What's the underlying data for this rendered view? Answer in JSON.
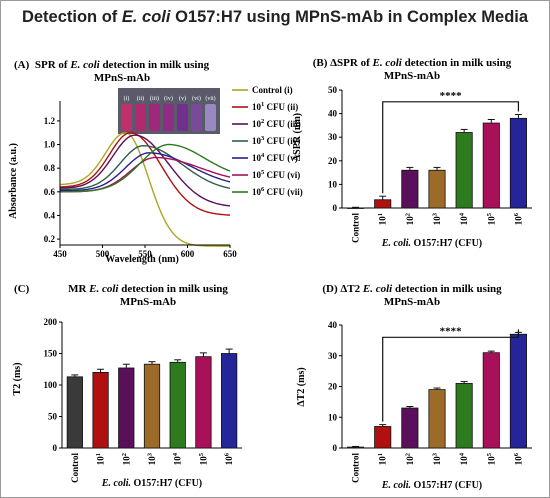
{
  "page": {
    "title": "Detection of E. coli O157:H7 using MPnS-mAb in Complex Media",
    "title_pre": "Detection of ",
    "title_italic": "E. coli",
    "title_post": " O157:H7 using MPnS-mAb in Complex Media"
  },
  "colors": {
    "control": "#3a3a3a",
    "cfu1": "#b01010",
    "cfu2": "#5a0f5a",
    "cfu3": "#9c6b2a",
    "cfu4": "#2e7a1e",
    "cfu5": "#a8105a",
    "cfu6": "#25259a",
    "spectrum": [
      "#b0a520",
      "#b01010",
      "#5a0f5a",
      "#2e5e4a",
      "#2a1e8a",
      "#a8105a",
      "#2e7a1e"
    ]
  },
  "chart_data": [
    {
      "type": "line",
      "panel": "(A)",
      "title": "SPR of E. coli detection in milk using MPnS-mAb",
      "title_line1_pre": "SPR of ",
      "title_line1_italic": "E. coli",
      "title_line1_post": " detection in milk using",
      "title_line2": "MPnS-mAb",
      "xlabel": "Wavelength (nm)",
      "ylabel": "Absorbance (a.u.)",
      "xlim": [
        450,
        650
      ],
      "ylim": [
        0.15,
        1.25
      ],
      "xticks": [
        "450",
        "500",
        "550",
        "600",
        "650"
      ],
      "yticks": [
        "0.2",
        "0.4",
        "0.6",
        "0.8",
        "1.0",
        "1.2"
      ],
      "legend_position": "right",
      "series": [
        {
          "name": "Control (i)",
          "legend": {
            "base": "",
            "sup": "",
            "text": "Control (i)"
          },
          "peak_x": 527,
          "peak_y": 1.1,
          "start_y": 0.66,
          "end_y": 0.14,
          "width_left": 42,
          "width_right": 45
        },
        {
          "name": "10^1 CFU (ii)",
          "legend": {
            "base": "10",
            "sup": "1",
            "text": " CFU (ii)"
          },
          "peak_x": 533,
          "peak_y": 1.1,
          "start_y": 0.64,
          "end_y": 0.4,
          "width_left": 44,
          "width_right": 60
        },
        {
          "name": "10^2 CFU (iii)",
          "legend": {
            "base": "10",
            "sup": "2",
            "text": " CFU (iii)"
          },
          "peak_x": 538,
          "peak_y": 1.08,
          "start_y": 0.63,
          "end_y": 0.47,
          "width_left": 46,
          "width_right": 66
        },
        {
          "name": "10^3 CFU (iv)",
          "legend": {
            "base": "10",
            "sup": "3",
            "text": " CFU (iv)"
          },
          "peak_x": 548,
          "peak_y": 0.99,
          "start_y": 0.62,
          "end_y": 0.6,
          "width_left": 48,
          "width_right": 75
        },
        {
          "name": "10^4 CFU (v)",
          "legend": {
            "base": "10",
            "sup": "4",
            "text": " CFU (v)"
          },
          "peak_x": 555,
          "peak_y": 0.93,
          "start_y": 0.61,
          "end_y": 0.64,
          "width_left": 50,
          "width_right": 82
        },
        {
          "name": "10^5 CFU (vi)",
          "legend": {
            "base": "10",
            "sup": "5",
            "text": " CFU (vi)"
          },
          "peak_x": 562,
          "peak_y": 0.89,
          "start_y": 0.6,
          "end_y": 0.67,
          "width_left": 52,
          "width_right": 88
        },
        {
          "name": "10^6 CFU (vii)",
          "legend": {
            "base": "10",
            "sup": "6",
            "text": " CFU (vii)"
          },
          "peak_x": 578,
          "peak_y": 1.0,
          "start_y": 0.6,
          "end_y": 0.71,
          "width_left": 60,
          "width_right": 70
        }
      ],
      "inset_labels": [
        "(i)",
        "(ii)",
        "(iii)",
        "(iv)",
        "(v)",
        "(vi)",
        "(vii)"
      ]
    },
    {
      "type": "bar",
      "panel": "(B)",
      "title": "ΔSPR of E. coli detection in milk using MPnS-mAb",
      "title_line1_pre": "(B) ΔSPR of ",
      "title_line1_italic": "E. coli",
      "title_line1_post": " detection in milk using",
      "title_line2": "MPnS-mAb",
      "ylabel": "ΔSPR (nm)",
      "xlabel_italic": "E. coli.",
      "xlabel_rest": " O157:H7 (CFU)",
      "ylim": [
        0,
        50
      ],
      "yticks": [
        "0",
        "10",
        "20",
        "30",
        "40",
        "50"
      ],
      "categories": [
        {
          "base": "Control",
          "sup": ""
        },
        {
          "base": "10",
          "sup": "1"
        },
        {
          "base": "10",
          "sup": "2"
        },
        {
          "base": "10",
          "sup": "3"
        },
        {
          "base": "10",
          "sup": "4"
        },
        {
          "base": "10",
          "sup": "5"
        },
        {
          "base": "10",
          "sup": "6"
        }
      ],
      "values": [
        0,
        3.5,
        16,
        16,
        32,
        36,
        38
      ],
      "errors": [
        0.3,
        1.5,
        1.2,
        1.2,
        1.3,
        1.5,
        1.6
      ],
      "significance": {
        "from": 1,
        "to": 6,
        "label": "****",
        "y": 45
      }
    },
    {
      "type": "bar",
      "panel": "(C)",
      "title": "MR E. coli detection in milk using MPnS-mAb",
      "title_line1_pre": "MR ",
      "title_line1_italic": "E. coli",
      "title_line1_post": " detection in milk using",
      "title_line2": "MPnS-mAb",
      "ylabel": "T2 (ms)",
      "xlabel_italic": "E. coli.",
      "xlabel_rest": " O157:H7 (CFU)",
      "ylim": [
        0,
        200
      ],
      "yticks": [
        "0",
        "50",
        "100",
        "150",
        "200"
      ],
      "categories": [
        {
          "base": "Control",
          "sup": ""
        },
        {
          "base": "10",
          "sup": "1"
        },
        {
          "base": "10",
          "sup": "2"
        },
        {
          "base": "10",
          "sup": "3"
        },
        {
          "base": "10",
          "sup": "4"
        },
        {
          "base": "10",
          "sup": "5"
        },
        {
          "base": "10",
          "sup": "6"
        }
      ],
      "values": [
        113,
        120,
        127,
        133,
        136,
        145,
        150
      ],
      "errors": [
        3,
        5,
        6,
        4,
        4,
        6,
        7
      ]
    },
    {
      "type": "bar",
      "panel": "(D)",
      "title": "ΔT2 E. coli detection in milk using MPnS-mAb",
      "title_line1_pre": "(D) ΔT2 ",
      "title_line1_italic": "E. coli",
      "title_line1_post": " detection in milk using",
      "title_line2": "MPnS-mAb",
      "ylabel": "ΔT2 (ms)",
      "xlabel_italic": "E. coli.",
      "xlabel_rest": " O157:H7 (CFU)",
      "ylim": [
        0,
        40
      ],
      "yticks": [
        "0",
        "10",
        "20",
        "30",
        "40"
      ],
      "categories": [
        {
          "base": "Control",
          "sup": ""
        },
        {
          "base": "10",
          "sup": "1"
        },
        {
          "base": "10",
          "sup": "2"
        },
        {
          "base": "10",
          "sup": "3"
        },
        {
          "base": "10",
          "sup": "4"
        },
        {
          "base": "10",
          "sup": "5"
        },
        {
          "base": "10",
          "sup": "6"
        }
      ],
      "values": [
        0.3,
        7,
        13,
        19,
        21,
        31,
        37
      ],
      "errors": [
        0.2,
        0.6,
        0.5,
        0.5,
        0.6,
        0.5,
        0.6
      ],
      "significance": {
        "from": 1,
        "to": 6,
        "label": "****",
        "y": 36
      }
    }
  ]
}
